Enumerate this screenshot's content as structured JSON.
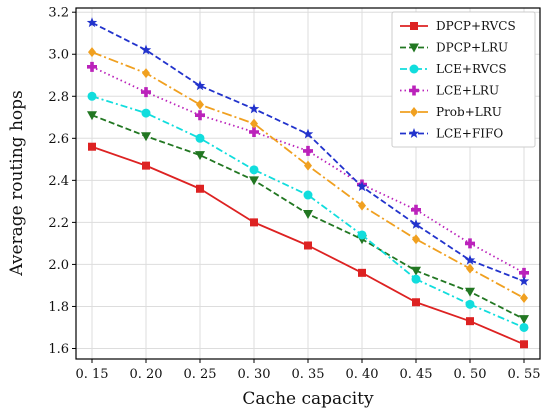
{
  "chart_data": {
    "type": "line",
    "title": "",
    "xlabel": "Cache capacity",
    "ylabel": "Average routing hops",
    "x": [
      0.15,
      0.2,
      0.25,
      0.3,
      0.35,
      0.4,
      0.45,
      0.5,
      0.55
    ],
    "x_tick_labels": [
      "0. 15",
      "0. 20",
      "0. 25",
      "0. 30",
      "0. 35",
      "0. 40",
      "0. 45",
      "0. 50",
      "0. 55"
    ],
    "ylim": [
      1.55,
      3.22
    ],
    "y_ticks": [
      1.6,
      1.8,
      2.0,
      2.2,
      2.4,
      2.6,
      2.8,
      3.0,
      3.2
    ],
    "y_tick_labels": [
      "1.6",
      "1.8",
      "2.0",
      "2.2",
      "2.4",
      "2.6",
      "2.8",
      "3.0",
      "3.2"
    ],
    "grid": true,
    "legend_position": "top-right",
    "series": [
      {
        "name": "DPCP+RVCS",
        "color": "#dd2222",
        "dash": "solid",
        "marker": "square",
        "values": [
          2.56,
          2.47,
          2.36,
          2.2,
          2.09,
          1.96,
          1.82,
          1.73,
          1.62
        ]
      },
      {
        "name": "DPCP+LRU",
        "color": "#227722",
        "dash": "dashed",
        "marker": "triangle-down",
        "values": [
          2.71,
          2.61,
          2.52,
          2.4,
          2.24,
          2.12,
          1.97,
          1.87,
          1.74
        ]
      },
      {
        "name": "LCE+RVCS",
        "color": "#11dddd",
        "dash": "dashdot",
        "marker": "circle",
        "values": [
          2.8,
          2.72,
          2.6,
          2.45,
          2.33,
          2.14,
          1.93,
          1.81,
          1.7
        ]
      },
      {
        "name": "LCE+LRU",
        "color": "#bb22bb",
        "dash": "dotted",
        "marker": "plus",
        "values": [
          2.94,
          2.82,
          2.71,
          2.63,
          2.54,
          2.38,
          2.26,
          2.1,
          1.96
        ]
      },
      {
        "name": "Prob+LRU",
        "color": "#f0a020",
        "dash": "dashdot-long",
        "marker": "diamond",
        "values": [
          3.01,
          2.91,
          2.76,
          2.67,
          2.47,
          2.28,
          2.12,
          1.98,
          1.84
        ]
      },
      {
        "name": "LCE+FIFO",
        "color": "#2233cc",
        "dash": "dashed",
        "marker": "star",
        "values": [
          3.15,
          3.02,
          2.85,
          2.74,
          2.62,
          2.37,
          2.19,
          2.02,
          1.92
        ]
      }
    ]
  }
}
